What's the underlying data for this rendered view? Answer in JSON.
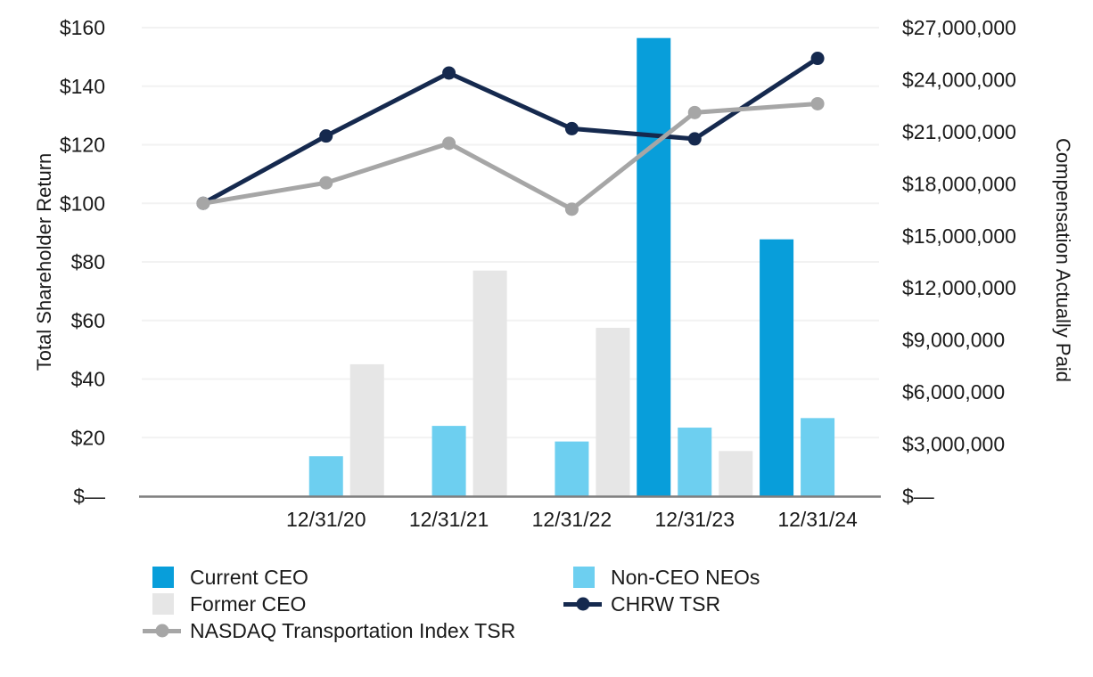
{
  "chart_data": {
    "type": "combo_bar_line",
    "title": "",
    "x_axis": {
      "categories": [
        "",
        "12/31/20",
        "12/31/21",
        "12/31/22",
        "12/31/23",
        "12/31/24"
      ]
    },
    "left_axis": {
      "title": "Total Shareholder Return",
      "min": 0,
      "max": 160,
      "step": 20,
      "tick_labels": [
        "$160",
        "$140",
        "$120",
        "$100",
        "$80",
        "$60",
        "$40",
        "$20",
        "$—"
      ]
    },
    "right_axis": {
      "title": "Compensation Actually Paid",
      "min": 0,
      "max": 27000000,
      "step": 3000000,
      "tick_labels": [
        "$27,000,000",
        "$24,000,000",
        "$21,000,000",
        "$18,000,000",
        "$15,000,000",
        "$12,000,000",
        "$9,000,000",
        "$6,000,000",
        "$3,000,000",
        "$—"
      ]
    },
    "bar_series": [
      {
        "name": "Current CEO",
        "color": "#089EDA",
        "axis": "right",
        "values": [
          null,
          null,
          null,
          null,
          26400000,
          14800000
        ]
      },
      {
        "name": "Non-CEO NEOs",
        "color": "#6DCFF0",
        "axis": "right",
        "values": [
          null,
          2300000,
          4050000,
          3150000,
          3950000,
          4500000
        ]
      },
      {
        "name": "Former CEO",
        "color": "#E6E6E6",
        "axis": "right",
        "values": [
          null,
          7600000,
          13000000,
          9700000,
          2600000,
          null
        ]
      }
    ],
    "line_series": [
      {
        "name": "CHRW TSR",
        "color": "#15294E",
        "axis": "left",
        "values": [
          100,
          123,
          144.5,
          125.5,
          122,
          149.5
        ]
      },
      {
        "name": "NASDAQ Transportation Index TSR",
        "color": "#A6A6A6",
        "axis": "left",
        "values": [
          100,
          107,
          120.5,
          98,
          131,
          134
        ]
      }
    ],
    "grid": true,
    "legend_position": "bottom"
  },
  "legend": {
    "col1": [
      {
        "label": "Current CEO",
        "marker": "square",
        "color": "#089EDA"
      },
      {
        "label": "Former CEO",
        "marker": "square",
        "color": "#E6E6E6"
      },
      {
        "label": "NASDAQ Transportation Index TSR",
        "marker": "line",
        "color": "#A6A6A6"
      }
    ],
    "col2": [
      {
        "label": "Non-CEO NEOs",
        "marker": "square",
        "color": "#6DCFF0"
      },
      {
        "label": "CHRW TSR",
        "marker": "line",
        "color": "#15294E"
      }
    ]
  },
  "style_colors": {
    "gridline": "#F2F2F2",
    "axis_line": "#7F7F7F",
    "text": "#1A1A1A"
  }
}
